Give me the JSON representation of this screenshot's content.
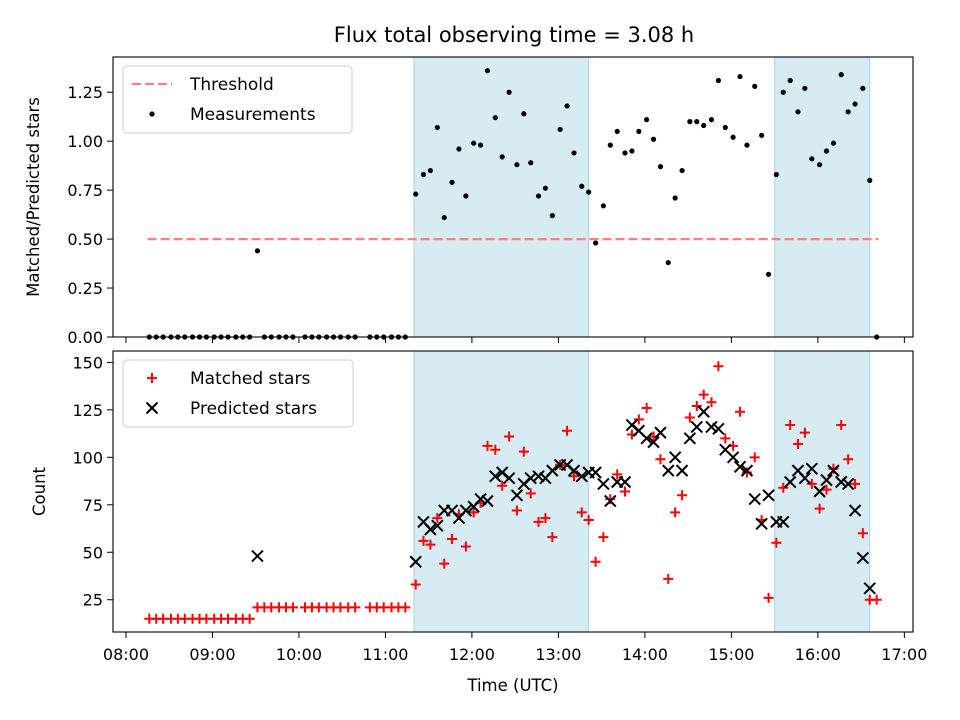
{
  "chart_data": [
    {
      "type": "scatter",
      "title": "Flux total observing time = 3.08 h",
      "xlabel": "",
      "ylabel": "Matched/Predicted stars",
      "xlim": [
        7.85,
        17.1
      ],
      "ylim": [
        0,
        1.43
      ],
      "yticks": [
        0.0,
        0.25,
        0.5,
        0.75,
        1.0,
        1.25
      ],
      "ytick_labels": [
        "0.00",
        "0.25",
        "0.50",
        "0.75",
        "1.00",
        "1.25"
      ],
      "shaded_spans": [
        [
          11.33,
          13.35
        ],
        [
          15.5,
          16.6
        ]
      ],
      "threshold": {
        "label": "Threshold",
        "value": 0.5,
        "x_range": [
          8.25,
          16.7
        ],
        "color": "#ff7f7f"
      },
      "series": [
        {
          "name": "Measurements",
          "color": "#000000",
          "points": [
            [
              8.27,
              0
            ],
            [
              8.35,
              0
            ],
            [
              8.43,
              0
            ],
            [
              8.52,
              0
            ],
            [
              8.6,
              0
            ],
            [
              8.68,
              0
            ],
            [
              8.77,
              0
            ],
            [
              8.85,
              0
            ],
            [
              8.93,
              0
            ],
            [
              9.02,
              0
            ],
            [
              9.1,
              0
            ],
            [
              9.18,
              0
            ],
            [
              9.27,
              0
            ],
            [
              9.35,
              0
            ],
            [
              9.43,
              0
            ],
            [
              9.52,
              0.44
            ],
            [
              9.6,
              0
            ],
            [
              9.68,
              0
            ],
            [
              9.77,
              0
            ],
            [
              9.85,
              0
            ],
            [
              9.93,
              0
            ],
            [
              10.07,
              0
            ],
            [
              10.15,
              0
            ],
            [
              10.23,
              0
            ],
            [
              10.32,
              0
            ],
            [
              10.4,
              0
            ],
            [
              10.48,
              0
            ],
            [
              10.57,
              0
            ],
            [
              10.65,
              0
            ],
            [
              10.82,
              0
            ],
            [
              10.9,
              0
            ],
            [
              10.98,
              0
            ],
            [
              11.07,
              0
            ],
            [
              11.15,
              0
            ],
            [
              11.23,
              0
            ],
            [
              11.35,
              0.73
            ],
            [
              11.44,
              0.83
            ],
            [
              11.52,
              0.85
            ],
            [
              11.6,
              1.07
            ],
            [
              11.68,
              0.61
            ],
            [
              11.77,
              0.79
            ],
            [
              11.85,
              0.96
            ],
            [
              11.93,
              0.72
            ],
            [
              12.02,
              0.99
            ],
            [
              12.1,
              0.98
            ],
            [
              12.18,
              1.36
            ],
            [
              12.27,
              1.12
            ],
            [
              12.35,
              0.92
            ],
            [
              12.43,
              1.25
            ],
            [
              12.52,
              0.88
            ],
            [
              12.6,
              1.14
            ],
            [
              12.68,
              0.89
            ],
            [
              12.77,
              0.72
            ],
            [
              12.85,
              0.76
            ],
            [
              12.93,
              0.62
            ],
            [
              13.02,
              1.06
            ],
            [
              13.1,
              1.18
            ],
            [
              13.18,
              0.94
            ],
            [
              13.27,
              0.77
            ],
            [
              13.35,
              0.74
            ],
            [
              13.43,
              0.48
            ],
            [
              13.52,
              0.67
            ],
            [
              13.6,
              0.98
            ],
            [
              13.68,
              1.05
            ],
            [
              13.77,
              0.94
            ],
            [
              13.85,
              0.95
            ],
            [
              13.93,
              1.05
            ],
            [
              14.02,
              1.11
            ],
            [
              14.1,
              1.01
            ],
            [
              14.18,
              0.87
            ],
            [
              14.27,
              0.38
            ],
            [
              14.35,
              0.71
            ],
            [
              14.43,
              0.85
            ],
            [
              14.52,
              1.1
            ],
            [
              14.6,
              1.1
            ],
            [
              14.68,
              1.08
            ],
            [
              14.77,
              1.11
            ],
            [
              14.85,
              1.31
            ],
            [
              14.93,
              1.07
            ],
            [
              15.02,
              1.02
            ],
            [
              15.1,
              1.33
            ],
            [
              15.18,
              0.98
            ],
            [
              15.27,
              1.28
            ],
            [
              15.35,
              1.03
            ],
            [
              15.43,
              0.32
            ],
            [
              15.52,
              0.83
            ],
            [
              15.6,
              1.25
            ],
            [
              15.68,
              1.31
            ],
            [
              15.77,
              1.15
            ],
            [
              15.85,
              1.27
            ],
            [
              15.93,
              0.91
            ],
            [
              16.02,
              0.88
            ],
            [
              16.1,
              0.95
            ],
            [
              16.18,
              0.99
            ],
            [
              16.27,
              1.34
            ],
            [
              16.35,
              1.15
            ],
            [
              16.43,
              1.19
            ],
            [
              16.52,
              1.27
            ],
            [
              16.6,
              0.8
            ],
            [
              16.68,
              0
            ]
          ]
        }
      ]
    },
    {
      "type": "scatter",
      "title": "",
      "xlabel": "Time (UTC)",
      "ylabel": "Count",
      "xlim": [
        7.85,
        17.1
      ],
      "ylim": [
        8,
        156
      ],
      "yticks": [
        25,
        50,
        75,
        100,
        125,
        150
      ],
      "ytick_labels": [
        "25",
        "50",
        "75",
        "100",
        "125",
        "150"
      ],
      "xticks": [
        8,
        9,
        10,
        11,
        12,
        13,
        14,
        15,
        16,
        17
      ],
      "xtick_labels": [
        "08:00",
        "09:00",
        "10:00",
        "11:00",
        "12:00",
        "13:00",
        "14:00",
        "15:00",
        "16:00",
        "17:00"
      ],
      "shaded_spans": [
        [
          11.33,
          13.35
        ],
        [
          15.5,
          16.6
        ]
      ],
      "series": [
        {
          "name": "Matched stars",
          "marker": "+",
          "color": "#ff0000",
          "points": [
            [
              8.27,
              15
            ],
            [
              8.35,
              15
            ],
            [
              8.43,
              15
            ],
            [
              8.52,
              15
            ],
            [
              8.6,
              15
            ],
            [
              8.68,
              15
            ],
            [
              8.77,
              15
            ],
            [
              8.85,
              15
            ],
            [
              8.93,
              15
            ],
            [
              9.02,
              15
            ],
            [
              9.1,
              15
            ],
            [
              9.18,
              15
            ],
            [
              9.27,
              15
            ],
            [
              9.35,
              15
            ],
            [
              9.43,
              15
            ],
            [
              9.52,
              21
            ],
            [
              9.6,
              21
            ],
            [
              9.68,
              21
            ],
            [
              9.77,
              21
            ],
            [
              9.85,
              21
            ],
            [
              9.93,
              21
            ],
            [
              10.07,
              21
            ],
            [
              10.15,
              21
            ],
            [
              10.23,
              21
            ],
            [
              10.32,
              21
            ],
            [
              10.4,
              21
            ],
            [
              10.48,
              21
            ],
            [
              10.57,
              21
            ],
            [
              10.65,
              21
            ],
            [
              10.82,
              21
            ],
            [
              10.9,
              21
            ],
            [
              10.98,
              21
            ],
            [
              11.07,
              21
            ],
            [
              11.15,
              21
            ],
            [
              11.23,
              21
            ],
            [
              11.35,
              33
            ],
            [
              11.44,
              56
            ],
            [
              11.52,
              54
            ],
            [
              11.6,
              68
            ],
            [
              11.68,
              44
            ],
            [
              11.77,
              57
            ],
            [
              11.85,
              70
            ],
            [
              11.93,
              53
            ],
            [
              12.02,
              71
            ],
            [
              12.1,
              76
            ],
            [
              12.18,
              106
            ],
            [
              12.27,
              104
            ],
            [
              12.35,
              85
            ],
            [
              12.43,
              111
            ],
            [
              12.52,
              72
            ],
            [
              12.6,
              103
            ],
            [
              12.68,
              81
            ],
            [
              12.77,
              66
            ],
            [
              12.85,
              68
            ],
            [
              12.93,
              58
            ],
            [
              13.02,
              96
            ],
            [
              13.1,
              114
            ],
            [
              13.18,
              90
            ],
            [
              13.27,
              71
            ],
            [
              13.35,
              67
            ],
            [
              13.43,
              45
            ],
            [
              13.52,
              58
            ],
            [
              13.6,
              78
            ],
            [
              13.68,
              91
            ],
            [
              13.77,
              82
            ],
            [
              13.85,
              112
            ],
            [
              13.93,
              120
            ],
            [
              14.02,
              126
            ],
            [
              14.1,
              111
            ],
            [
              14.18,
              99
            ],
            [
              14.27,
              36
            ],
            [
              14.35,
              71
            ],
            [
              14.43,
              80
            ],
            [
              14.52,
              121
            ],
            [
              14.6,
              127
            ],
            [
              14.68,
              133
            ],
            [
              14.77,
              129
            ],
            [
              14.85,
              148
            ],
            [
              14.93,
              110
            ],
            [
              15.02,
              106
            ],
            [
              15.1,
              124
            ],
            [
              15.18,
              92
            ],
            [
              15.27,
              100
            ],
            [
              15.35,
              67
            ],
            [
              15.43,
              26
            ],
            [
              15.52,
              55
            ],
            [
              15.6,
              84
            ],
            [
              15.68,
              117
            ],
            [
              15.77,
              107
            ],
            [
              15.85,
              113
            ],
            [
              15.93,
              86
            ],
            [
              16.02,
              73
            ],
            [
              16.1,
              83
            ],
            [
              16.18,
              94
            ],
            [
              16.27,
              117
            ],
            [
              16.35,
              99
            ],
            [
              16.43,
              86
            ],
            [
              16.52,
              60
            ],
            [
              16.6,
              25
            ],
            [
              16.68,
              25
            ]
          ]
        },
        {
          "name": "Predicted stars",
          "marker": "x",
          "color": "#000000",
          "points": [
            [
              9.52,
              48
            ],
            [
              11.35,
              45
            ],
            [
              11.44,
              66
            ],
            [
              11.52,
              62
            ],
            [
              11.6,
              64
            ],
            [
              11.68,
              72
            ],
            [
              11.77,
              72
            ],
            [
              11.85,
              68
            ],
            [
              11.93,
              72
            ],
            [
              12.02,
              74
            ],
            [
              12.1,
              78
            ],
            [
              12.18,
              77
            ],
            [
              12.27,
              90
            ],
            [
              12.35,
              92
            ],
            [
              12.43,
              89
            ],
            [
              12.52,
              80
            ],
            [
              12.6,
              86
            ],
            [
              12.68,
              89
            ],
            [
              12.77,
              90
            ],
            [
              12.85,
              89
            ],
            [
              12.93,
              93
            ],
            [
              13.02,
              96
            ],
            [
              13.1,
              96
            ],
            [
              13.18,
              93
            ],
            [
              13.27,
              90
            ],
            [
              13.35,
              92
            ],
            [
              13.43,
              92
            ],
            [
              13.52,
              86
            ],
            [
              13.6,
              77
            ],
            [
              13.68,
              87
            ],
            [
              13.77,
              87
            ],
            [
              13.85,
              117
            ],
            [
              13.93,
              114
            ],
            [
              14.02,
              110
            ],
            [
              14.1,
              108
            ],
            [
              14.18,
              113
            ],
            [
              14.27,
              93
            ],
            [
              14.35,
              100
            ],
            [
              14.43,
              93
            ],
            [
              14.52,
              110
            ],
            [
              14.6,
              116
            ],
            [
              14.68,
              124
            ],
            [
              14.77,
              116
            ],
            [
              14.85,
              115
            ],
            [
              14.93,
              104
            ],
            [
              15.02,
              100
            ],
            [
              15.1,
              95
            ],
            [
              15.18,
              93
            ],
            [
              15.27,
              78
            ],
            [
              15.35,
              65
            ],
            [
              15.43,
              80
            ],
            [
              15.52,
              66
            ],
            [
              15.6,
              66
            ],
            [
              15.68,
              87
            ],
            [
              15.77,
              93
            ],
            [
              15.85,
              89
            ],
            [
              15.93,
              94
            ],
            [
              16.02,
              82
            ],
            [
              16.1,
              88
            ],
            [
              16.18,
              93
            ],
            [
              16.27,
              87
            ],
            [
              16.35,
              86
            ],
            [
              16.43,
              72
            ],
            [
              16.52,
              47
            ],
            [
              16.6,
              31
            ]
          ]
        }
      ]
    }
  ]
}
